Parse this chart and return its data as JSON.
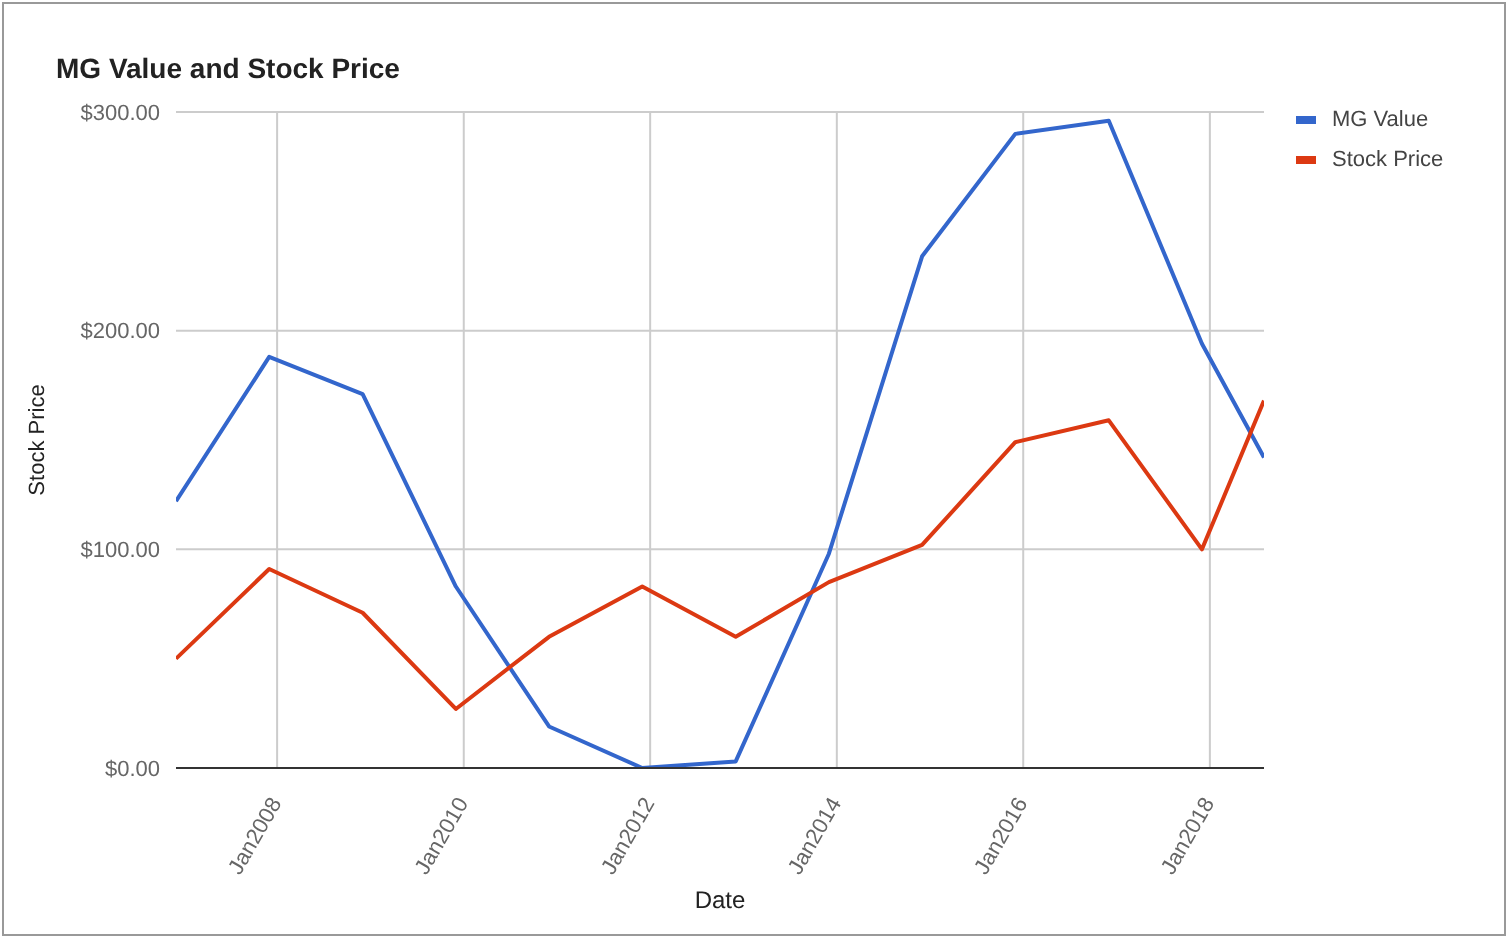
{
  "chart_data": {
    "type": "line",
    "title": "MG Value and Stock Price",
    "xlabel": "Date",
    "ylabel": "Stock Price",
    "x": [
      "2006-12",
      "2007-12",
      "2008-12",
      "2009-12",
      "2010-12",
      "2011-12",
      "2012-12",
      "2013-12",
      "2014-12",
      "2015-12",
      "2016-12",
      "2017-12",
      "2018-08"
    ],
    "series": [
      {
        "name": "MG Value",
        "color": "#3366cc",
        "values": [
          122,
          188,
          171,
          83,
          19,
          0,
          3,
          98,
          234,
          290,
          296,
          194,
          142
        ]
      },
      {
        "name": "Stock Price",
        "color": "#dc3912",
        "values": [
          50,
          91,
          71,
          27,
          60,
          83,
          60,
          85,
          102,
          149,
          159,
          100,
          168
        ]
      }
    ],
    "xlim": [
      "2006-12",
      "2018-08"
    ],
    "xticks": [
      {
        "value": "2008-01",
        "label": "Jan2008"
      },
      {
        "value": "2010-01",
        "label": "Jan2010"
      },
      {
        "value": "2012-01",
        "label": "Jan2012"
      },
      {
        "value": "2014-01",
        "label": "Jan2014"
      },
      {
        "value": "2016-01",
        "label": "Jan2016"
      },
      {
        "value": "2018-01",
        "label": "Jan2018"
      }
    ],
    "ylim": [
      0,
      300
    ],
    "yticks": [
      {
        "value": 0,
        "label": "$0.00"
      },
      {
        "value": 100,
        "label": "$100.00"
      },
      {
        "value": 200,
        "label": "$200.00"
      },
      {
        "value": 300,
        "label": "$300.00"
      }
    ],
    "grid": true,
    "legend": "right",
    "marker": "none",
    "line_style": "solid"
  }
}
